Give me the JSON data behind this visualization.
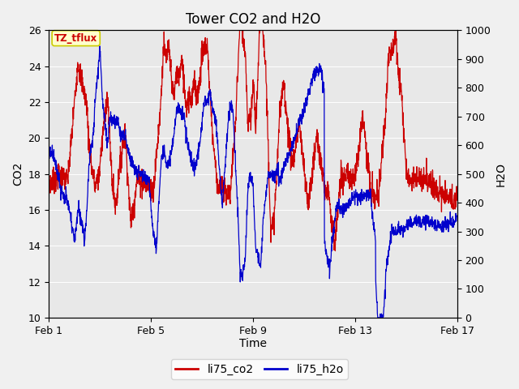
{
  "title": "Tower CO2 and H2O",
  "xlabel": "Time",
  "ylabel_left": "CO2",
  "ylabel_right": "H2O",
  "xlim_days": [
    0,
    16
  ],
  "ylim_left": [
    10,
    26
  ],
  "ylim_right": [
    0,
    1000
  ],
  "yticks_left": [
    10,
    12,
    14,
    16,
    18,
    20,
    22,
    24,
    26
  ],
  "yticks_right": [
    0,
    100,
    200,
    300,
    400,
    500,
    600,
    700,
    800,
    900,
    1000
  ],
  "xtick_positions": [
    0,
    4,
    8,
    12,
    16
  ],
  "xtick_labels": [
    "Feb 1",
    "Feb 5",
    "Feb 9",
    "Feb 13",
    "Feb 17"
  ],
  "color_co2": "#cc0000",
  "color_h2o": "#0000cc",
  "annotation_text": "TZ_tflux",
  "legend_labels": [
    "li75_co2",
    "li75_h2o"
  ],
  "fig_facecolor": "#f0f0f0",
  "plot_facecolor": "#e8e8e8",
  "linewidth": 0.9,
  "title_fontsize": 12,
  "axis_fontsize": 10,
  "tick_fontsize": 9,
  "grid_color": "#ffffff",
  "grid_linewidth": 0.7,
  "legend_fontsize": 10
}
